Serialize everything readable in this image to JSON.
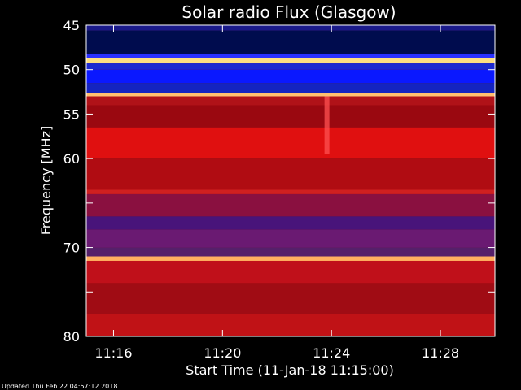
{
  "chart_data": {
    "type": "heatmap",
    "title": "Solar radio Flux (Glasgow)",
    "xlabel": "Start Time (11-Jan-18 11:15:00)",
    "ylabel": "Frequency [MHz]",
    "xlim": [
      "11:15:00",
      "11:30:00"
    ],
    "ylim": [
      45,
      80
    ],
    "y_inverted": true,
    "x_ticks": [
      "11:16",
      "11:20",
      "11:24",
      "11:28"
    ],
    "y_ticks": [
      45,
      50,
      55,
      60,
      65,
      70,
      75,
      80
    ],
    "y_tick_labels": [
      "45",
      "50",
      "55",
      "60",
      "",
      "70",
      "",
      "80"
    ],
    "colormap": "blue-red-yellow",
    "bands": [
      {
        "f0": 45.0,
        "f1": 45.6,
        "color": "#1a1a8a"
      },
      {
        "f0": 45.6,
        "f1": 48.2,
        "color": "#000c4e"
      },
      {
        "f0": 48.2,
        "f1": 48.7,
        "color": "#2a30ff"
      },
      {
        "f0": 48.7,
        "f1": 49.3,
        "color": "#ffe080"
      },
      {
        "f0": 49.3,
        "f1": 50.0,
        "color": "#1d2ad0"
      },
      {
        "f0": 50.0,
        "f1": 51.5,
        "color": "#0a18ff"
      },
      {
        "f0": 51.5,
        "f1": 52.6,
        "color": "#1424c0"
      },
      {
        "f0": 52.6,
        "f1": 53.0,
        "color": "#ffc070"
      },
      {
        "f0": 53.0,
        "f1": 54.0,
        "color": "#b01218"
      },
      {
        "f0": 54.0,
        "f1": 56.5,
        "color": "#9a0810"
      },
      {
        "f0": 56.5,
        "f1": 60.0,
        "color": "#e01010"
      },
      {
        "f0": 60.0,
        "f1": 63.5,
        "color": "#b00c12"
      },
      {
        "f0": 63.5,
        "f1": 64.0,
        "color": "#d02020"
      },
      {
        "f0": 64.0,
        "f1": 66.5,
        "color": "#8a1040"
      },
      {
        "f0": 66.5,
        "f1": 68.0,
        "color": "#48147a"
      },
      {
        "f0": 68.0,
        "f1": 70.0,
        "color": "#6a1a72"
      },
      {
        "f0": 70.0,
        "f1": 71.0,
        "color": "#55206a"
      },
      {
        "f0": 71.0,
        "f1": 71.5,
        "color": "#ffb060"
      },
      {
        "f0": 71.5,
        "f1": 74.0,
        "color": "#c0101a"
      },
      {
        "f0": 74.0,
        "f1": 77.5,
        "color": "#a00c14"
      },
      {
        "f0": 77.5,
        "f1": 80.0,
        "color": "#c01216"
      }
    ],
    "burst": {
      "time": "11:23:50",
      "f0": 53.0,
      "f1": 59.5,
      "color": "#ff5050"
    }
  },
  "footer": {
    "updated": "Updated Thu Feb 22 04:57:12 2018"
  }
}
